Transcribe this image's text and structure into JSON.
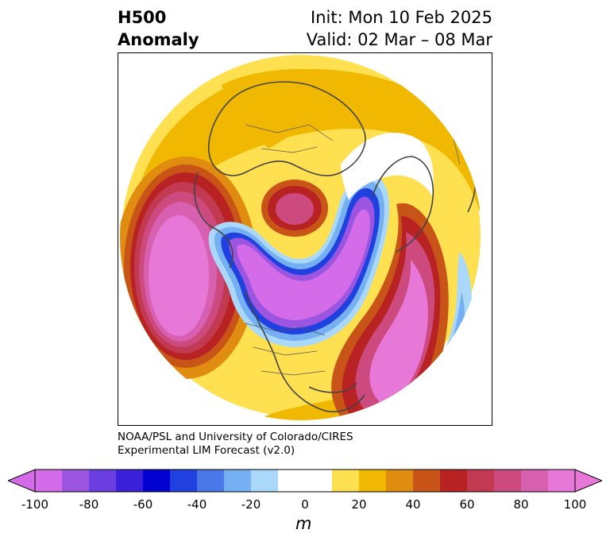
{
  "header": {
    "title_line1": "H500",
    "title_line2": "Anomaly",
    "init": "Init: Mon 10 Feb 2025",
    "valid": "Valid: 02 Mar – 08 Mar"
  },
  "credit": {
    "line1": "NOAA/PSL and University of Colorado/CIRES",
    "line2": "Experimental LIM Forecast (v2.0)"
  },
  "colorbar": {
    "unit": "m",
    "ticks": [
      "-100",
      "-80",
      "-60",
      "-40",
      "-20",
      "0",
      "20",
      "40",
      "60",
      "80",
      "100"
    ],
    "colors": [
      "#d46be8",
      "#9b55e0",
      "#6a3ee0",
      "#3a20d8",
      "#0000d0",
      "#2040e0",
      "#4a78e8",
      "#74b0f2",
      "#aad8fb",
      "#ffffff",
      "#ffffff",
      "#ffe050",
      "#f0b800",
      "#e08c10",
      "#c85418",
      "#b82222",
      "#c23a52",
      "#cc4a7e",
      "#d860b0",
      "#e878d8"
    ],
    "under_color": "#d46be8",
    "over_color": "#e878d8"
  }
}
